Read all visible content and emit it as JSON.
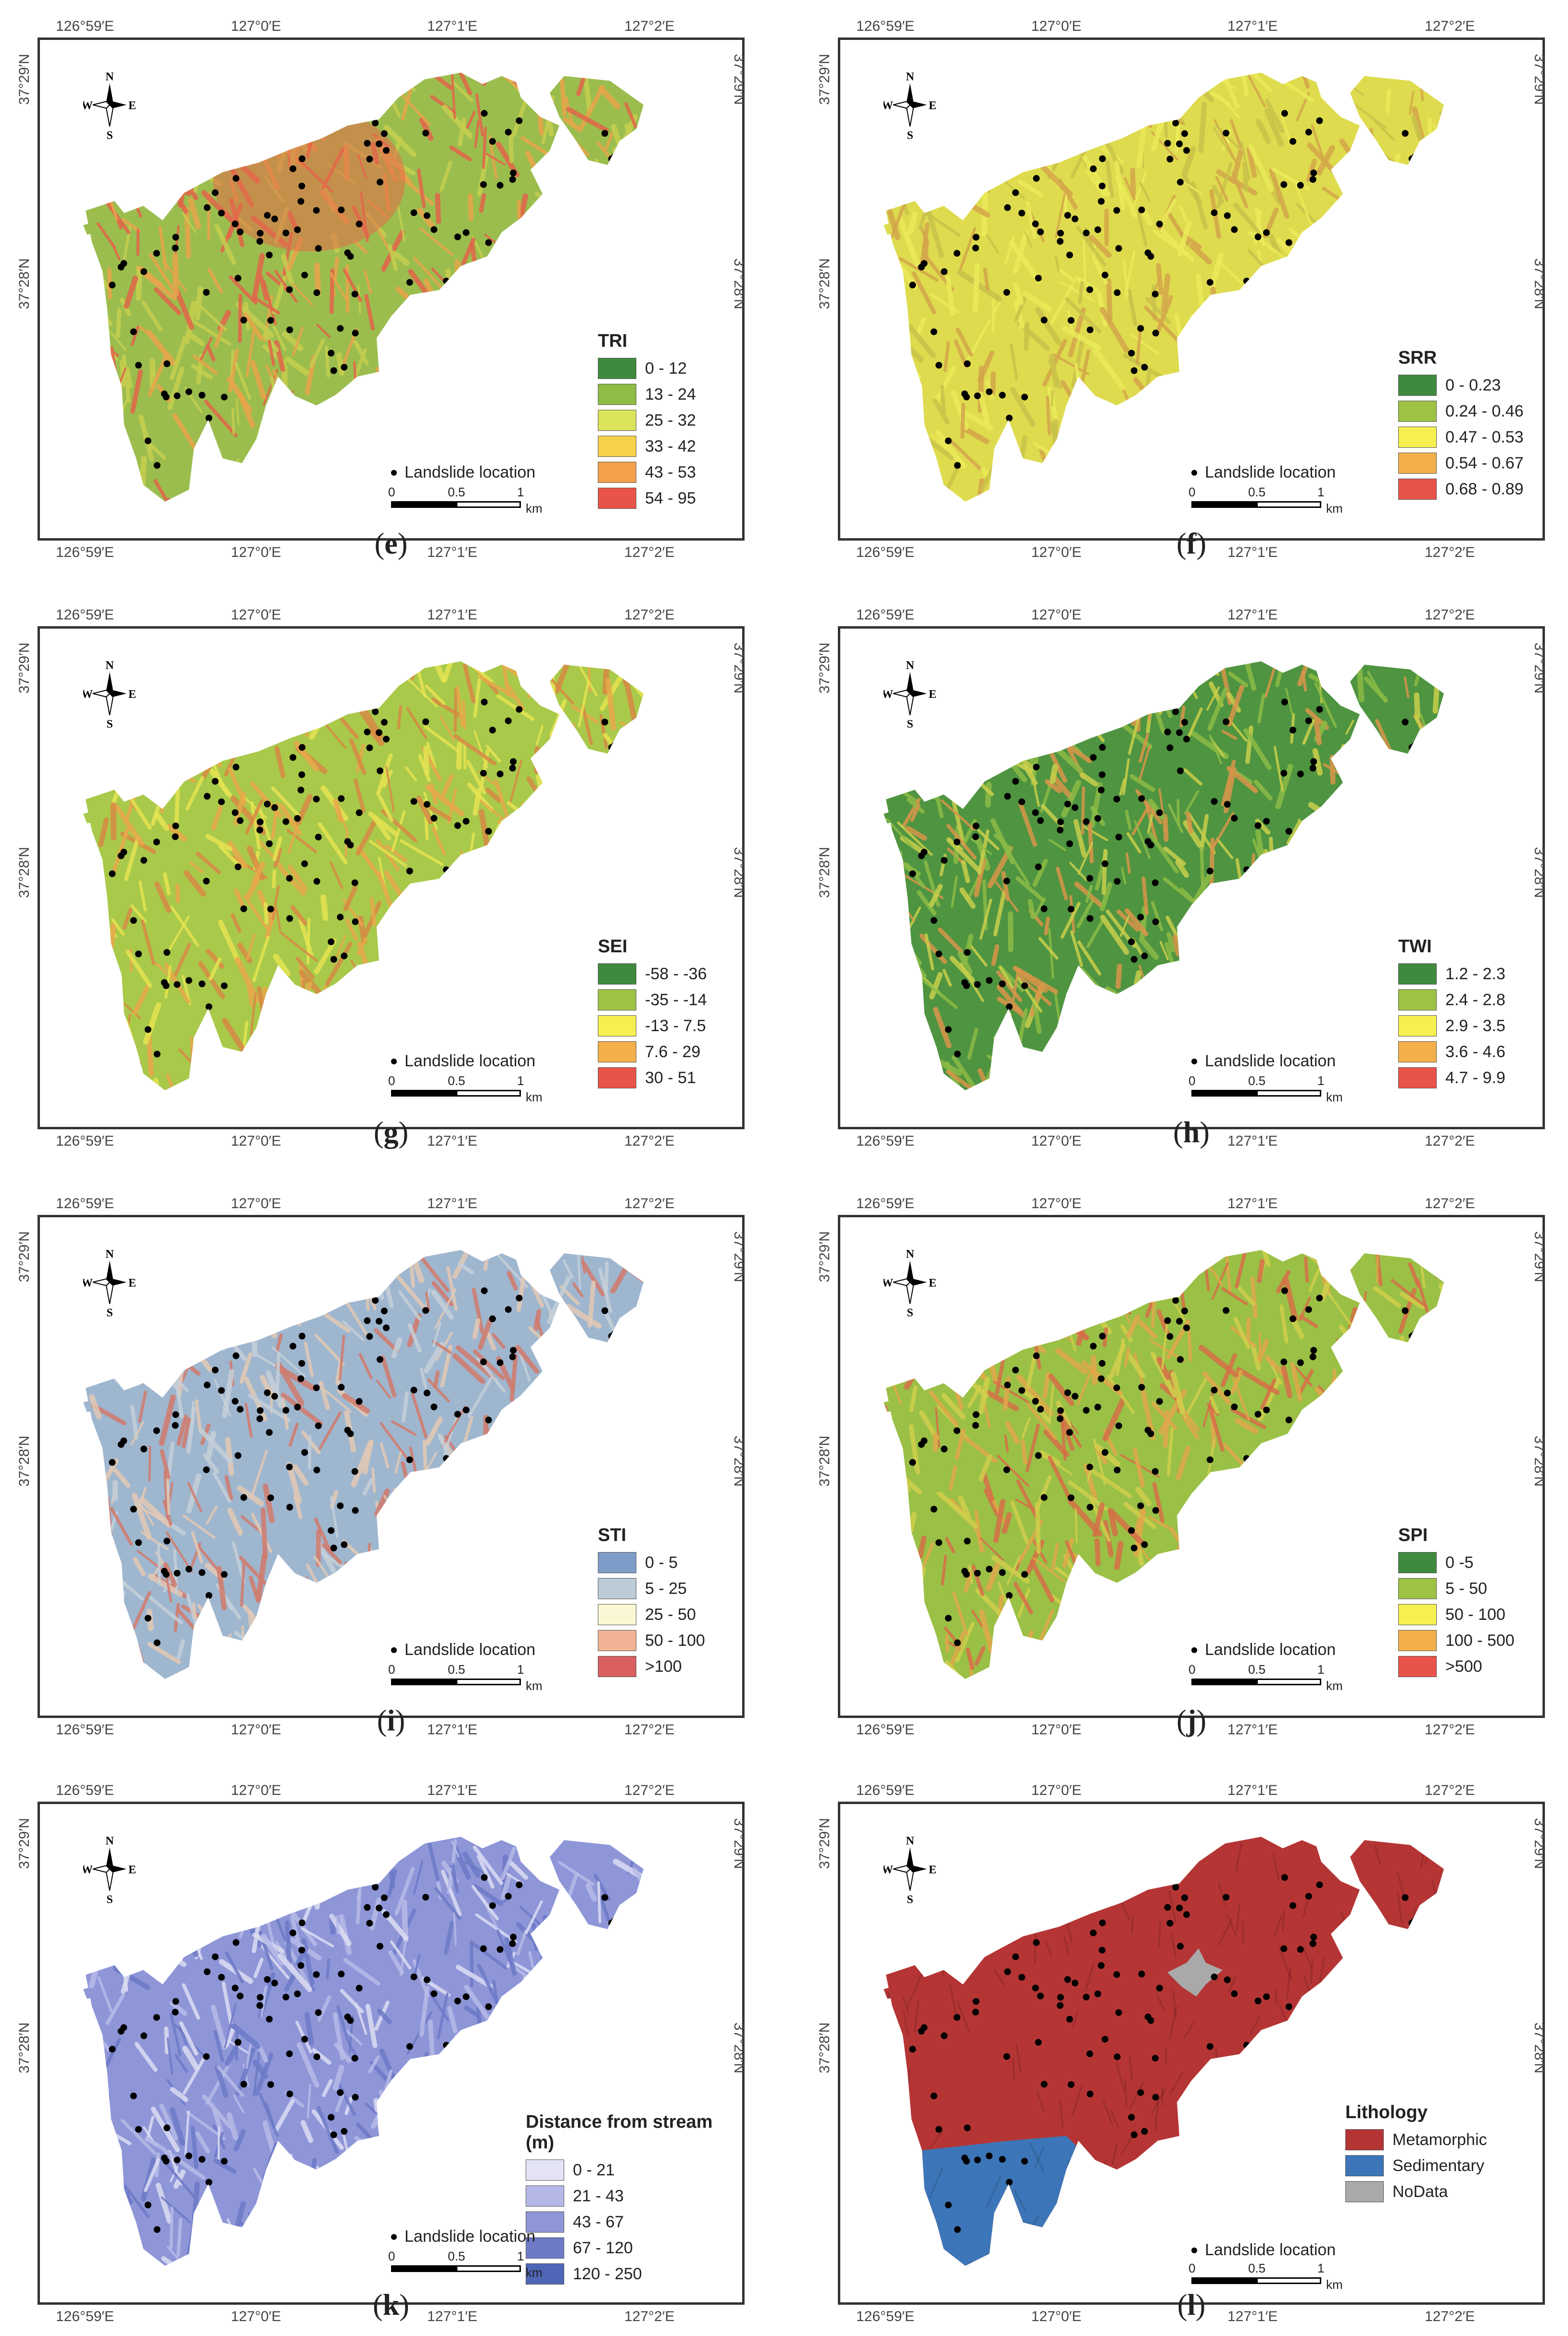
{
  "shared": {
    "coords": {
      "top": [
        "126°59′E",
        "127°0′E",
        "127°1′E",
        "127°2′E"
      ],
      "left_top": "37°29′N",
      "left_mid": "37°28′N"
    },
    "landslide_label": "Landslide location",
    "scale": {
      "t0": "0",
      "t1": "0.5",
      "t2": "1",
      "unit": "km"
    },
    "compass": {
      "n": "N",
      "s": "S",
      "e": "E",
      "w": "W"
    }
  },
  "panels": [
    {
      "id": "e",
      "caption": "e",
      "legend_title": "TRI",
      "items": [
        {
          "label": "0 - 12",
          "color": "#3f8a3f"
        },
        {
          "label": "13 - 24",
          "color": "#8fbc45"
        },
        {
          "label": "25 - 32",
          "color": "#dbe35a"
        },
        {
          "label": "33 - 42",
          "color": "#f6d24a"
        },
        {
          "label": "43 - 53",
          "color": "#f2a04a"
        },
        {
          "label": "54 - 95",
          "color": "#e8534a"
        }
      ],
      "map_colors": [
        "#9bbd4e",
        "#c6cf4f",
        "#e9a54b",
        "#e2664a"
      ]
    },
    {
      "id": "f",
      "caption": "f",
      "legend_title": "SRR",
      "items": [
        {
          "label": "0 - 0.23",
          "color": "#3f8a3f"
        },
        {
          "label": "0.24 - 0.46",
          "color": "#9dc244"
        },
        {
          "label": "0.47 - 0.53",
          "color": "#f5f050"
        },
        {
          "label": "0.54 - 0.67",
          "color": "#f3b04a"
        },
        {
          "label": "0.68 - 0.89",
          "color": "#e8534a"
        }
      ],
      "map_colors": [
        "#dedb4e",
        "#ecec5a",
        "#c9c24a",
        "#d4a64a"
      ]
    },
    {
      "id": "g",
      "caption": "g",
      "legend_title": "SEI",
      "items": [
        {
          "label": "-58 - -36",
          "color": "#3f8a3f"
        },
        {
          "label": "-35 - -14",
          "color": "#9dc244"
        },
        {
          "label": "-13 - 7.5",
          "color": "#f5f050"
        },
        {
          "label": "7.6 - 29",
          "color": "#f3b04a"
        },
        {
          "label": "30 - 51",
          "color": "#e8534a"
        }
      ],
      "map_colors": [
        "#a9c94a",
        "#e6e452",
        "#e9a94a",
        "#d88a45"
      ]
    },
    {
      "id": "h",
      "caption": "h",
      "legend_title": "TWI",
      "items": [
        {
          "label": "1.2 - 2.3",
          "color": "#3f8a3f"
        },
        {
          "label": "2.4 - 2.8",
          "color": "#9dc244"
        },
        {
          "label": "2.9 - 3.5",
          "color": "#f5f050"
        },
        {
          "label": "3.6 - 4.6",
          "color": "#f3b04a"
        },
        {
          "label": "4.7 - 9.9",
          "color": "#e8534a"
        }
      ],
      "map_colors": [
        "#4f9440",
        "#8bbb46",
        "#c9cf4c",
        "#d9964a"
      ]
    },
    {
      "id": "i",
      "caption": "i",
      "legend_title": "STI",
      "items": [
        {
          "label": "0 - 5",
          "color": "#7d9dc8"
        },
        {
          "label": "5 - 25",
          "color": "#bccbd6"
        },
        {
          "label": "25 - 50",
          "color": "#fbf6d4"
        },
        {
          "label": "50 - 100",
          "color": "#f0b394"
        },
        {
          "label": ">100",
          "color": "#d95f5f"
        }
      ],
      "map_colors": [
        "#9fb6cf",
        "#c5d0d9",
        "#e2c9b4",
        "#d27b6c"
      ]
    },
    {
      "id": "j",
      "caption": "j",
      "legend_title": "SPI",
      "items": [
        {
          "label": "0 -5",
          "color": "#3f8a3f"
        },
        {
          "label": "5 - 50",
          "color": "#9dc244"
        },
        {
          "label": "50 - 100",
          "color": "#f5f050"
        },
        {
          "label": "100 - 500",
          "color": "#f3b04a"
        },
        {
          "label": ">500",
          "color": "#e8534a"
        }
      ],
      "map_colors": [
        "#9ac046",
        "#d1cf4c",
        "#e1a84a",
        "#d66f48"
      ]
    },
    {
      "id": "k",
      "caption": "k",
      "legend_title": "Distance from stream (m)",
      "items": [
        {
          "label": "0 - 21",
          "color": "#e3e3f5"
        },
        {
          "label": "21 - 43",
          "color": "#b5b8e6"
        },
        {
          "label": "43 - 67",
          "color": "#8f95d6"
        },
        {
          "label": "67 - 120",
          "color": "#6e7ac8"
        },
        {
          "label": "120 - 250",
          "color": "#4f66b6"
        }
      ],
      "map_colors": [
        "#8e96d8",
        "#b7bbe8",
        "#6d7ac7",
        "#dcddf3"
      ]
    },
    {
      "id": "l",
      "caption": "l",
      "legend_title": "Lithology",
      "items": [
        {
          "label": "Metamorphic",
          "color": "#b53535"
        },
        {
          "label": "Sedimentary",
          "color": "#3d76b8"
        },
        {
          "label": "NoData",
          "color": "#a9a9a9"
        }
      ],
      "map_colors": [
        "#b53535",
        "#a82e2e",
        "#3d76b8",
        "#a9a9a9"
      ]
    }
  ]
}
